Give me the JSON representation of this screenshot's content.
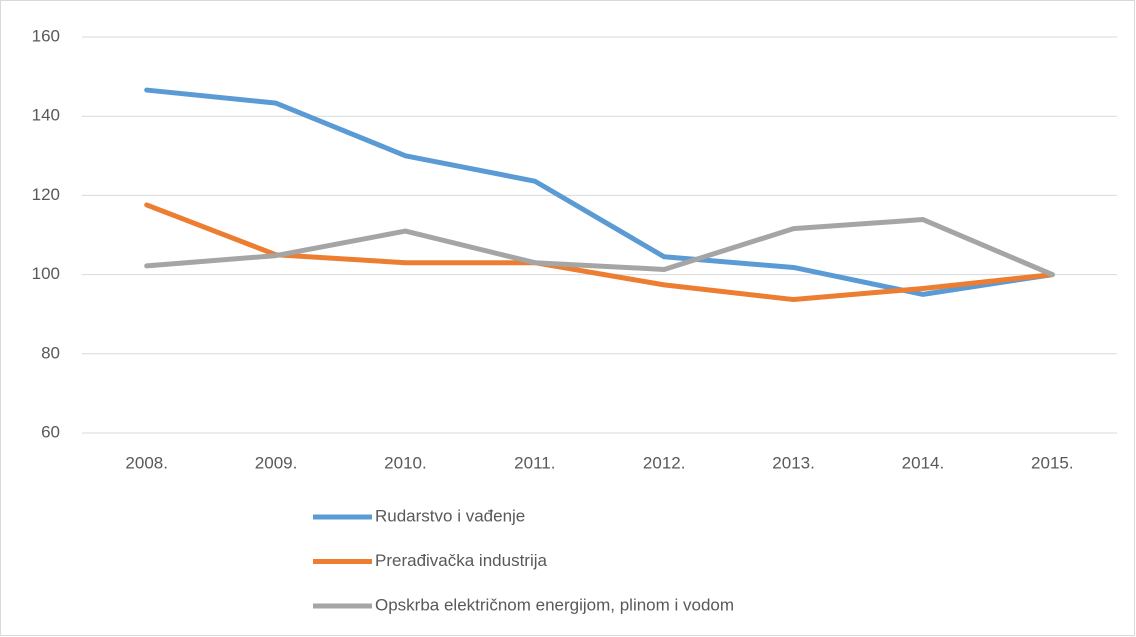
{
  "chart_data": {
    "type": "line",
    "categories": [
      "2008.",
      "2009.",
      "2010.",
      "2011.",
      "2012.",
      "2013.",
      "2014.",
      "2015."
    ],
    "series": [
      {
        "name": "Rudarstvo i vađenje",
        "color": "#5b9bd5",
        "values": [
          146.6,
          143.3,
          130,
          123.6,
          104.5,
          101.8,
          95,
          100
        ]
      },
      {
        "name": "Prerađivačka industrija",
        "color": "#ed7d31",
        "values": [
          117.6,
          105,
          103,
          103,
          97.4,
          93.7,
          96.5,
          100
        ]
      },
      {
        "name": "Opskrba električnom energijom, plinom i vodom",
        "color": "#a5a5a5",
        "values": [
          102.2,
          104.8,
          111,
          103,
          101.3,
          111.6,
          113.9,
          100
        ]
      }
    ],
    "ylim": [
      60,
      160
    ],
    "yticks": [
      60,
      80,
      100,
      120,
      140,
      160
    ],
    "grid": true,
    "legend": "bottom"
  }
}
